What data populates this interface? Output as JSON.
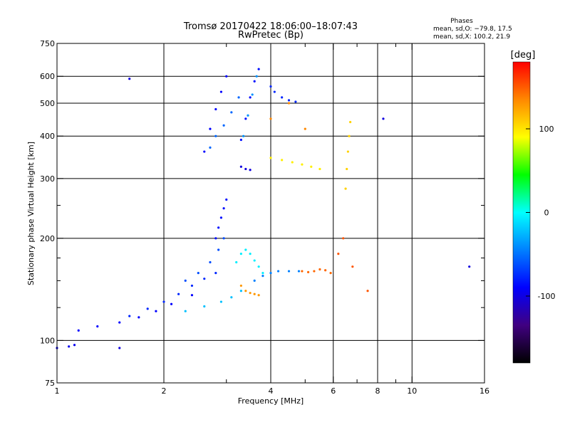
{
  "chart_data": {
    "type": "scatter",
    "title": "Tromsø 20170422 18:06:00–18:07:43",
    "subtitle": "RwPretec (Bp)",
    "xlabel": "Frequency [MHz]",
    "ylabel": "Stationary phase Virtual Height [km]",
    "x_scale": "log",
    "y_scale": "log",
    "xlim": [
      1,
      16
    ],
    "ylim": [
      75,
      750
    ],
    "x_ticks": [
      1,
      2,
      4,
      6,
      8,
      10,
      16
    ],
    "x_gridlines": [
      2,
      4,
      6,
      8,
      10
    ],
    "x_minor_ticks": [
      3,
      5,
      7,
      9
    ],
    "y_ticks": [
      75,
      100,
      200,
      300,
      400,
      500,
      600,
      750
    ],
    "y_gridlines": [
      100,
      200,
      300,
      400,
      500,
      600
    ],
    "y_minor_ticks": [
      125,
      150,
      175,
      250
    ],
    "grid": true,
    "phase_info": {
      "heading": "Phases",
      "line1": "mean, sd,O: −79.8, 17.5",
      "line2": "mean, sd,X: 100.2, 21.9"
    },
    "colorbar": {
      "label": "[deg]",
      "range": [
        -180,
        180
      ],
      "ticks": [
        100,
        0,
        -100
      ],
      "colors": [
        "#ff0000",
        "#ff8800",
        "#ffff00",
        "#00ff00",
        "#00ffff",
        "#0080ff",
        "#0000ff",
        "#400080",
        "#000000"
      ]
    },
    "series": [
      {
        "x": [
          1.0,
          1.08,
          1.12
        ],
        "y": [
          95,
          96,
          97
        ],
        "phase": -115
      },
      {
        "x": [
          1.15,
          1.3,
          1.5,
          1.7,
          1.9,
          2.1,
          2.4
        ],
        "y": [
          107,
          110,
          113,
          117,
          122,
          128,
          136
        ],
        "phase": -110
      },
      {
        "x": [
          1.6,
          1.8,
          2.0,
          2.2,
          2.4,
          2.6,
          2.8
        ],
        "y": [
          118,
          124,
          130,
          137,
          145,
          152,
          158
        ],
        "phase": -95
      },
      {
        "x": [
          2.3,
          2.5,
          2.7,
          2.85,
          2.95
        ],
        "y": [
          150,
          158,
          170,
          185,
          200
        ],
        "phase": -80
      },
      {
        "x": [
          2.8,
          2.85,
          2.9,
          2.95,
          3.0
        ],
        "y": [
          200,
          215,
          230,
          245,
          260
        ],
        "phase": -105
      },
      {
        "x": [
          2.3,
          2.6,
          2.9,
          3.1,
          3.3
        ],
        "y": [
          122,
          126,
          130,
          134,
          140
        ],
        "phase": -40
      },
      {
        "x": [
          3.3,
          3.4,
          3.5,
          3.6,
          3.7
        ],
        "y": [
          145,
          140,
          138,
          137,
          136
        ],
        "phase": 135
      },
      {
        "x": [
          3.6,
          3.8,
          4.0,
          4.2,
          4.5,
          4.8
        ],
        "y": [
          150,
          155,
          158,
          160,
          160,
          160
        ],
        "phase": -60
      },
      {
        "x": [
          4.9,
          5.1,
          5.3,
          5.5,
          5.7,
          5.9
        ],
        "y": [
          160,
          159,
          160,
          162,
          161,
          158
        ],
        "phase": 150
      },
      {
        "x": [
          3.2,
          3.3,
          3.4,
          3.5,
          3.6,
          3.7,
          3.8
        ],
        "y": [
          170,
          180,
          185,
          180,
          172,
          165,
          158
        ],
        "phase": -25
      },
      {
        "x": [
          2.6,
          2.7,
          2.8,
          2.9,
          3.0
        ],
        "y": [
          360,
          420,
          480,
          540,
          600
        ],
        "phase": -110
      },
      {
        "x": [
          2.7,
          2.8,
          2.95,
          3.1,
          3.25
        ],
        "y": [
          370,
          400,
          430,
          470,
          520
        ],
        "phase": -70
      },
      {
        "x": [
          3.3,
          3.4,
          3.5,
          3.6,
          3.7
        ],
        "y": [
          390,
          450,
          520,
          580,
          630
        ],
        "phase": -105
      },
      {
        "x": [
          3.35,
          3.45,
          3.55,
          3.65
        ],
        "y": [
          400,
          460,
          530,
          600
        ],
        "phase": -55
      },
      {
        "x": [
          3.3,
          3.4,
          3.5
        ],
        "y": [
          325,
          320,
          318
        ],
        "phase": -120
      },
      {
        "x": [
          4.0,
          4.3,
          4.6,
          4.9,
          5.2,
          5.5
        ],
        "y": [
          345,
          340,
          335,
          330,
          325,
          320
        ],
        "phase": 105
      },
      {
        "x": [
          4.0,
          4.1,
          4.3,
          4.5,
          4.7
        ],
        "y": [
          560,
          540,
          520,
          510,
          505
        ],
        "phase": -95
      },
      {
        "x": [
          4.0,
          4.5,
          5.0
        ],
        "y": [
          450,
          500,
          420
        ],
        "phase": 140
      },
      {
        "x": [
          6.5,
          6.55,
          6.6,
          6.65,
          6.7
        ],
        "y": [
          280,
          320,
          360,
          400,
          440
        ],
        "phase": 115
      },
      {
        "x": [
          6.2,
          6.4,
          6.8,
          7.5
        ],
        "y": [
          180,
          200,
          165,
          140
        ],
        "phase": 155
      },
      {
        "x": [
          1.6,
          1.5,
          14.5,
          8.3
        ],
        "y": [
          590,
          95,
          165,
          450
        ],
        "phase": -120
      }
    ]
  }
}
